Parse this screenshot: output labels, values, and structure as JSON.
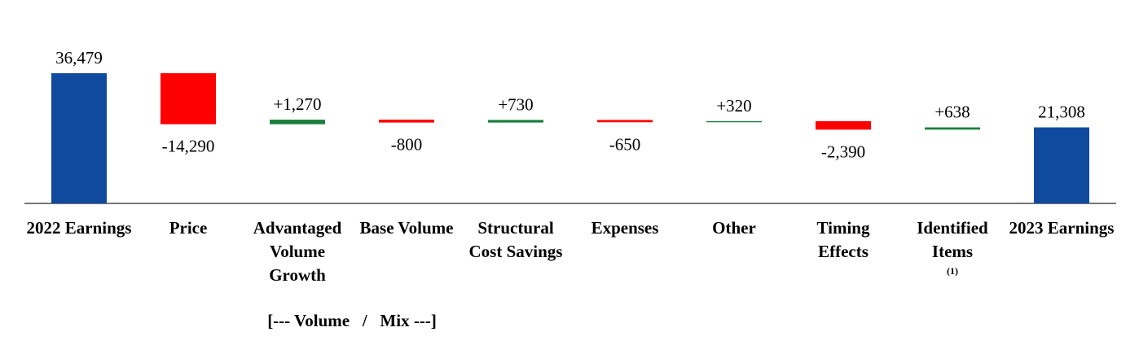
{
  "chart_data": {
    "type": "waterfall",
    "categories": [
      "2022 Earnings",
      "Price",
      "Advantaged Volume Growth",
      "Base Volume",
      "Structural Cost Savings",
      "Expenses",
      "Other",
      "Timing Effects",
      "Identified Items",
      "2023 Earnings"
    ],
    "values": [
      36479,
      -14290,
      1270,
      -800,
      730,
      -650,
      320,
      -2390,
      638,
      21308
    ],
    "value_labels": [
      "36,479",
      "-14,290",
      "+1,270",
      "-800",
      "+730",
      "-650",
      "+320",
      "-2,390",
      "+638",
      "21,308"
    ],
    "is_total": [
      true,
      false,
      false,
      false,
      false,
      false,
      false,
      false,
      false,
      true
    ],
    "colors": {
      "total": "#0f4a9e",
      "increase": "#1a7f3c",
      "decrease": "#ff0000"
    },
    "annotations": [
      {
        "text": "(1)",
        "category": "Identified Items"
      }
    ],
    "group_label": {
      "text": "[--- Volume   /   Mix ---]",
      "categories": [
        "Advantaged Volume Growth",
        "Base Volume"
      ]
    }
  }
}
